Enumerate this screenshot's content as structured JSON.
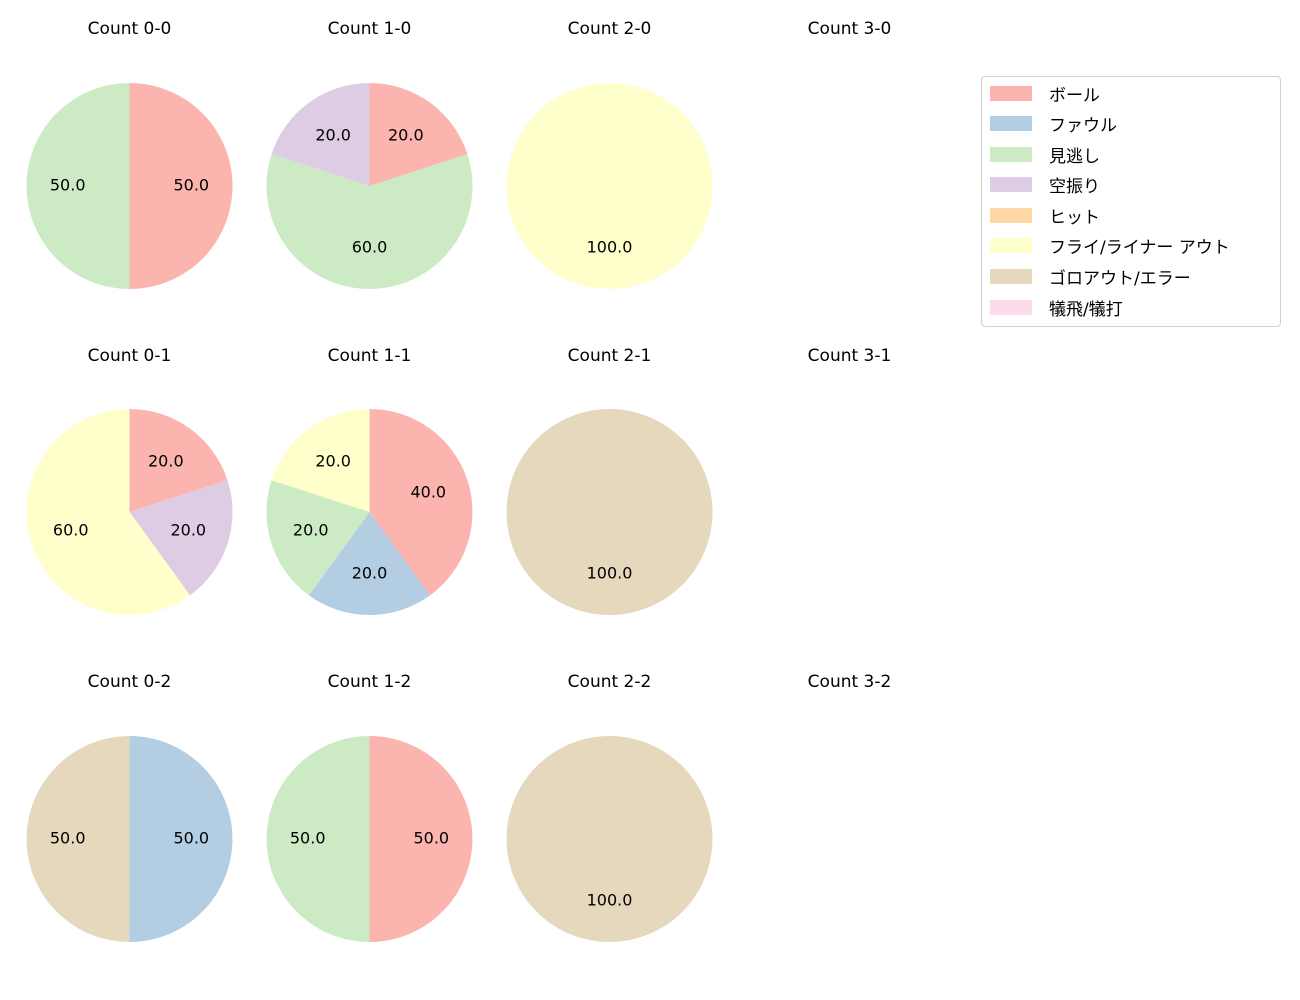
{
  "chart_data": {
    "type": "pie",
    "categories": [
      "ボール",
      "ファウル",
      "見逃し",
      "空振り",
      "ヒット",
      "フライ/ライナー アウト",
      "ゴロアウト/エラー",
      "犠飛/犠打"
    ],
    "colors": [
      "#fbb4ae",
      "#b3cde3",
      "#ccebc5",
      "#decbe4",
      "#fed9a6",
      "#ffffcc",
      "#e5d8bd",
      "#fddaec"
    ],
    "legend_position": "top-right",
    "charts": [
      {
        "title": "Count 0-0",
        "slices": [
          {
            "category": 0,
            "value": 50,
            "label": "50.0"
          },
          {
            "category": 2,
            "value": 50,
            "label": "50.0"
          }
        ]
      },
      {
        "title": "Count 1-0",
        "slices": [
          {
            "category": 0,
            "value": 20,
            "label": "20.0"
          },
          {
            "category": 2,
            "value": 60,
            "label": "60.0"
          },
          {
            "category": 3,
            "value": 20,
            "label": "20.0"
          }
        ]
      },
      {
        "title": "Count 2-0",
        "slices": [
          {
            "category": 5,
            "value": 100,
            "label": "100.0"
          }
        ]
      },
      {
        "title": "Count 3-0",
        "slices": []
      },
      {
        "title": "Count 0-1",
        "slices": [
          {
            "category": 0,
            "value": 20,
            "label": "20.0"
          },
          {
            "category": 3,
            "value": 20,
            "label": "20.0"
          },
          {
            "category": 5,
            "value": 60,
            "label": "60.0"
          }
        ]
      },
      {
        "title": "Count 1-1",
        "slices": [
          {
            "category": 0,
            "value": 40,
            "label": "40.0"
          },
          {
            "category": 1,
            "value": 20,
            "label": "20.0"
          },
          {
            "category": 2,
            "value": 20,
            "label": "20.0"
          },
          {
            "category": 5,
            "value": 20,
            "label": "20.0"
          }
        ]
      },
      {
        "title": "Count 2-1",
        "slices": [
          {
            "category": 6,
            "value": 100,
            "label": "100.0"
          }
        ]
      },
      {
        "title": "Count 3-1",
        "slices": []
      },
      {
        "title": "Count 0-2",
        "slices": [
          {
            "category": 1,
            "value": 50,
            "label": "50.0"
          },
          {
            "category": 6,
            "value": 50,
            "label": "50.0"
          }
        ]
      },
      {
        "title": "Count 1-2",
        "slices": [
          {
            "category": 0,
            "value": 50,
            "label": "50.0"
          },
          {
            "category": 2,
            "value": 50,
            "label": "50.0"
          }
        ]
      },
      {
        "title": "Count 2-2",
        "slices": [
          {
            "category": 6,
            "value": 100,
            "label": "100.0"
          }
        ]
      },
      {
        "title": "Count 3-2",
        "slices": []
      }
    ]
  }
}
